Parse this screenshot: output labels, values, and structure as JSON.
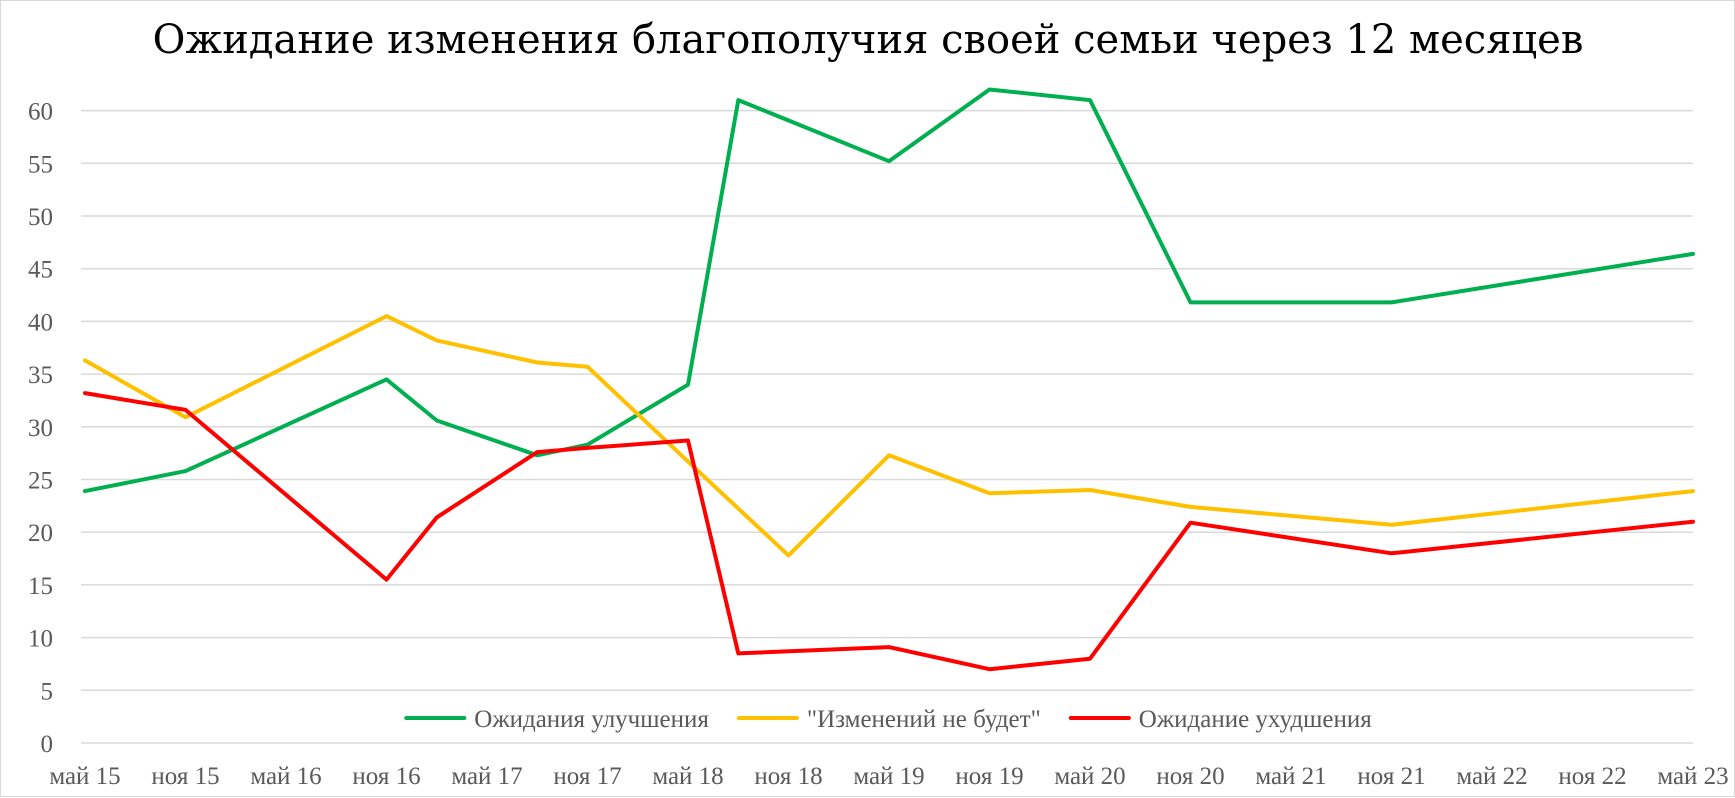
{
  "chart_data": {
    "type": "line",
    "title": "Ожидание изменения благополучия своей семьи через 12 месяцев",
    "xlabel": "",
    "ylabel": "",
    "ylim": [
      0,
      65
    ],
    "yticks": [
      0,
      5,
      10,
      15,
      20,
      25,
      30,
      35,
      40,
      45,
      50,
      55,
      60
    ],
    "grid": true,
    "legend_position": "bottom",
    "x_ticks": [
      "май 15",
      "ноя 15",
      "май 16",
      "ноя 16",
      "май 17",
      "ноя 17",
      "май 18",
      "ноя 18",
      "май 19",
      "ноя 19",
      "май 20",
      "ноя 20",
      "май 21",
      "ноя 21",
      "май 22",
      "ноя 22",
      "май 23"
    ],
    "series": [
      {
        "name": "Ожидания улучшения",
        "color": "#00b050",
        "points": [
          {
            "x": "май 15",
            "y": 23.9
          },
          {
            "x": "ноя 15",
            "y": 25.8
          },
          {
            "x": "ноя 16",
            "y": 34.5
          },
          {
            "x": "фев 17",
            "y": 30.6
          },
          {
            "x": "авг 17",
            "y": 27.3
          },
          {
            "x": "ноя 17",
            "y": 28.3
          },
          {
            "x": "май 18",
            "y": 34.0
          },
          {
            "x": "авг 18",
            "y": 61.0
          },
          {
            "x": "май 19",
            "y": 55.2
          },
          {
            "x": "ноя 19",
            "y": 62.0
          },
          {
            "x": "май 20",
            "y": 61.0
          },
          {
            "x": "ноя 20",
            "y": 41.8
          },
          {
            "x": "ноя 21",
            "y": 41.8
          },
          {
            "x": "май 23",
            "y": 46.4
          }
        ]
      },
      {
        "name": "\"Изменений не будет\"",
        "color": "#ffc000",
        "points": [
          {
            "x": "май 15",
            "y": 36.3
          },
          {
            "x": "ноя 15",
            "y": 30.9
          },
          {
            "x": "ноя 16",
            "y": 40.5
          },
          {
            "x": "фев 17",
            "y": 38.2
          },
          {
            "x": "авг 17",
            "y": 36.1
          },
          {
            "x": "ноя 17",
            "y": 35.7
          },
          {
            "x": "май 18",
            "y": 26.7
          },
          {
            "x": "ноя 18",
            "y": 17.8
          },
          {
            "x": "май 19",
            "y": 27.3
          },
          {
            "x": "ноя 19",
            "y": 23.7
          },
          {
            "x": "май 20",
            "y": 24.0
          },
          {
            "x": "ноя 20",
            "y": 22.4
          },
          {
            "x": "ноя 21",
            "y": 20.7
          },
          {
            "x": "май 23",
            "y": 23.9
          }
        ]
      },
      {
        "name": "Ожидание ухудшения",
        "color": "#ff0000",
        "points": [
          {
            "x": "май 15",
            "y": 33.2
          },
          {
            "x": "ноя 15",
            "y": 31.6
          },
          {
            "x": "ноя 16",
            "y": 15.5
          },
          {
            "x": "фев 17",
            "y": 21.4
          },
          {
            "x": "авг 17",
            "y": 27.6
          },
          {
            "x": "ноя 17",
            "y": 28.0
          },
          {
            "x": "май 18",
            "y": 28.7
          },
          {
            "x": "авг 18",
            "y": 8.5
          },
          {
            "x": "май 19",
            "y": 9.1
          },
          {
            "x": "ноя 19",
            "y": 7.0
          },
          {
            "x": "май 20",
            "y": 8.0
          },
          {
            "x": "ноя 20",
            "y": 20.9
          },
          {
            "x": "ноя 21",
            "y": 18.0
          },
          {
            "x": "май 23",
            "y": 21.0
          }
        ]
      }
    ]
  }
}
